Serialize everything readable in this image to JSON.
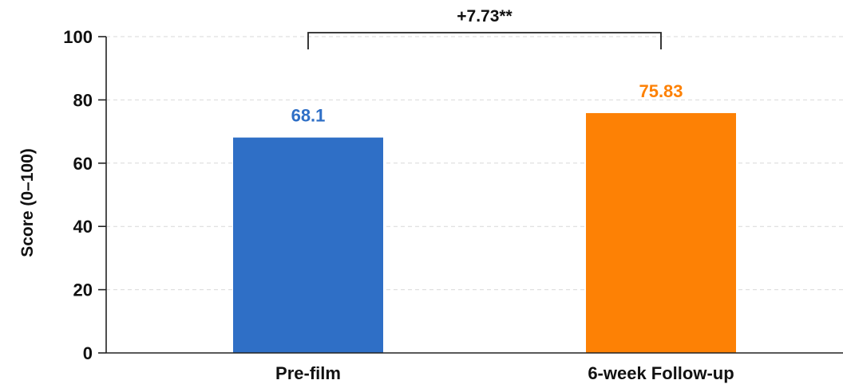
{
  "chart_data": {
    "type": "bar",
    "categories": [
      "Pre-film",
      "6-week Follow-up"
    ],
    "values": [
      68.1,
      75.83
    ],
    "value_labels": [
      "68.1",
      "75.83"
    ],
    "colors": [
      "#2f6fc6",
      "#fd8105"
    ],
    "title": "",
    "xlabel": "",
    "ylabel": "Score (0–100)",
    "ylim": [
      0,
      100
    ],
    "yticks": [
      0,
      20,
      40,
      60,
      80,
      100
    ],
    "grid": true,
    "legend": "none",
    "annotation": {
      "text": "+7.73**",
      "between": [
        "Pre-film",
        "6-week Follow-up"
      ],
      "bracket_level": 100
    }
  }
}
